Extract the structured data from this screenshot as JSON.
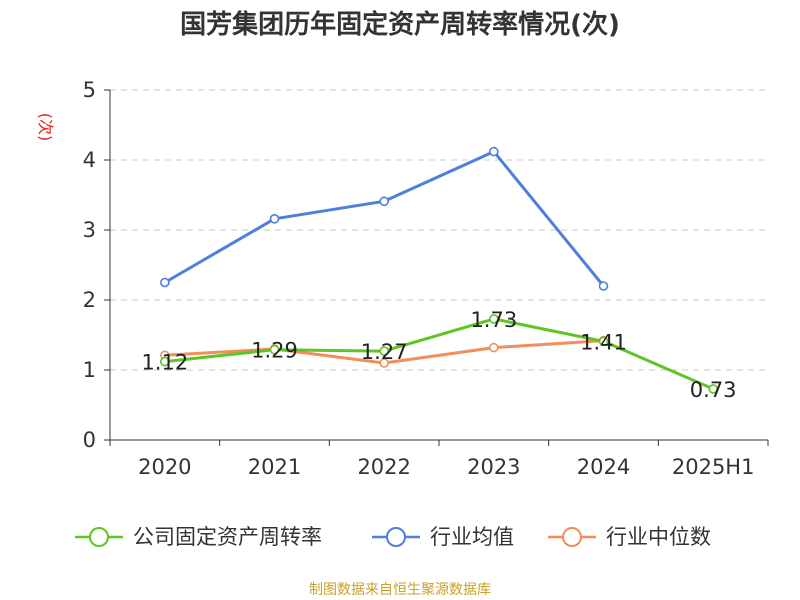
{
  "chart_data": {
    "type": "line",
    "title": "国芳集团历年固定资产周转率情况(次)",
    "ylabel": "(次)",
    "xlabel": "",
    "categories": [
      "2020",
      "2021",
      "2022",
      "2023",
      "2024",
      "2025H1"
    ],
    "ylim": [
      0,
      5
    ],
    "yticks": [
      0,
      1,
      2,
      3,
      4,
      5
    ],
    "grid": true,
    "legend_position": "bottom",
    "series": [
      {
        "name": "公司固定资产周转率",
        "color": "#5ec522",
        "values": [
          1.12,
          1.29,
          1.27,
          1.73,
          1.41,
          0.73
        ],
        "labels": [
          "1.12",
          "1.29",
          "1.27",
          "1.73",
          "1.41",
          "0.73"
        ]
      },
      {
        "name": "行业均值",
        "color": "#4e7fdc",
        "values": [
          2.25,
          3.16,
          3.41,
          4.12,
          2.2,
          null
        ]
      },
      {
        "name": "行业中位数",
        "color": "#f28e5a",
        "values": [
          1.21,
          1.3,
          1.1,
          1.32,
          1.42,
          null
        ]
      }
    ],
    "source": "制图数据来自恒生聚源数据库"
  }
}
